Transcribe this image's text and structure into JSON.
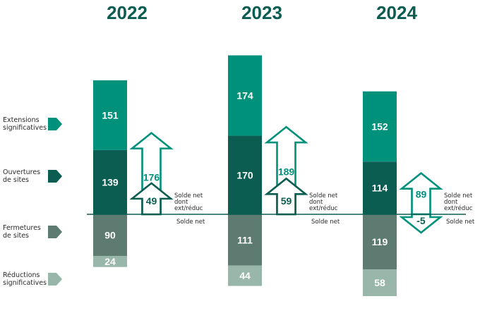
{
  "colors": {
    "extensions": "#00917b",
    "ouvertures": "#0c5d51",
    "fermetures": "#5d7b70",
    "reductions": "#98b6aa",
    "axis": "#0c5d51",
    "arrow": "#00917b",
    "year": "#0c5d51"
  },
  "legend": [
    {
      "key": "extensions",
      "label_lines": [
        "Extensions",
        "significatives"
      ]
    },
    {
      "key": "ouvertures",
      "label_lines": [
        "Ouvertures",
        "de sites"
      ]
    },
    {
      "key": "fermetures",
      "label_lines": [
        "Fermetures",
        "de sites"
      ]
    },
    {
      "key": "reductions",
      "label_lines": [
        "Réductions",
        "significatives"
      ]
    }
  ],
  "annotations": {
    "solde_net_dont": [
      "Solde net",
      "dont",
      "ext/réduc"
    ],
    "solde_net": "Solde net"
  },
  "chart_data": {
    "type": "bar",
    "stacked": true,
    "categories": [
      "2022",
      "2023",
      "2024"
    ],
    "series": [
      {
        "name": "Extensions significatives",
        "key": "extensions",
        "values": [
          151,
          174,
          152
        ],
        "sign": 1
      },
      {
        "name": "Ouvertures de sites",
        "key": "ouvertures",
        "values": [
          139,
          170,
          114
        ],
        "sign": 1
      },
      {
        "name": "Fermetures de sites",
        "key": "fermetures",
        "values": [
          90,
          111,
          119
        ],
        "sign": -1
      },
      {
        "name": "Réductions significatives",
        "key": "reductions",
        "values": [
          24,
          44,
          58
        ],
        "sign": -1
      }
    ],
    "solde_net": [
      176,
      189,
      89
    ],
    "solde_net_dont_ext_reduc": [
      49,
      59,
      -5
    ]
  }
}
